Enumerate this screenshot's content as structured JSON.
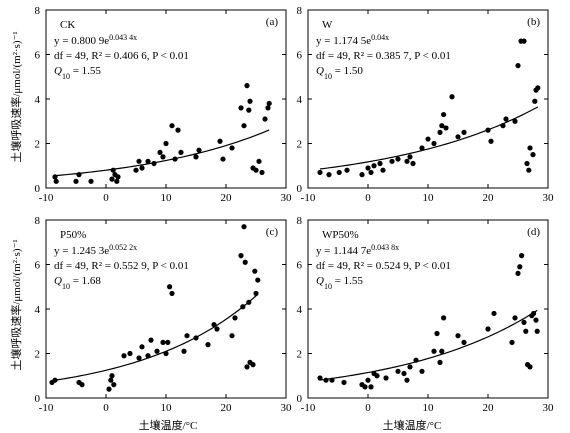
{
  "chart_data": {
    "type": "scatter",
    "xlabel": "土壤温度/°C",
    "ylabel": "土壤呼吸速率/μmol/(m²·s)⁻¹",
    "xlim": [
      -10,
      30
    ],
    "ylim": [
      0,
      8
    ],
    "xticks": [
      -10,
      0,
      10,
      20,
      30
    ],
    "yticks": [
      0,
      2,
      4,
      6,
      8
    ],
    "panels": [
      {
        "name": "CK",
        "tag": "(a)",
        "eq_lines": [
          "y = 0.800 9e^0.043 4x",
          "df = 49, R² = 0.406 6, P < 0.01",
          "Q10 = 1.55"
        ],
        "fit": {
          "a": 0.8009,
          "b": 0.0434
        },
        "x": [
          -8.5,
          -8.3,
          -5,
          -4.5,
          -2.5,
          1,
          1.2,
          1.5,
          1.8,
          2,
          5,
          5.5,
          6,
          7,
          8,
          9,
          9.5,
          10,
          11,
          11.5,
          12,
          12.5,
          15,
          15.5,
          19,
          19.5,
          21,
          22.5,
          23,
          23.5,
          24,
          24.5,
          25,
          25.5,
          26,
          26.5,
          27,
          27.2,
          23.8
        ],
        "y": [
          0.5,
          0.3,
          0.3,
          0.6,
          0.3,
          0.4,
          0.8,
          0.6,
          0.3,
          0.5,
          0.8,
          1.2,
          0.9,
          1.2,
          1.1,
          1.6,
          1.4,
          2.0,
          2.8,
          1.3,
          2.6,
          1.6,
          1.4,
          1.7,
          2.1,
          1.3,
          1.8,
          3.6,
          2.8,
          4.6,
          3.9,
          0.9,
          0.8,
          1.2,
          0.7,
          3.1,
          3.6,
          3.8,
          3.5
        ]
      },
      {
        "name": "W",
        "tag": "(b)",
        "eq_lines": [
          "y = 1.174 5e^0.04x",
          "df = 49, R² = 0.385 7, P < 0.01",
          "Q10 = 1.50"
        ],
        "fit": {
          "a": 1.1745,
          "b": 0.04
        },
        "x": [
          -8,
          -6.5,
          -4.8,
          -3.5,
          -1,
          0,
          0.5,
          1,
          2,
          2.5,
          4,
          5,
          6.5,
          7,
          7.5,
          9,
          10,
          11,
          12,
          12.3,
          12.6,
          13,
          14,
          15,
          16,
          20,
          20.5,
          22.5,
          23,
          24.5,
          25,
          25.5,
          26,
          26.5,
          26.8,
          27,
          27.5,
          27.8,
          28,
          28.3
        ],
        "y": [
          0.7,
          0.6,
          0.7,
          0.8,
          0.6,
          0.9,
          0.7,
          1.0,
          1.1,
          0.8,
          1.2,
          1.3,
          1.2,
          1.4,
          1.1,
          1.8,
          2.2,
          2.0,
          2.5,
          2.8,
          3.3,
          2.7,
          4.1,
          2.3,
          2.5,
          2.6,
          2.1,
          2.8,
          3.1,
          3.0,
          5.5,
          6.6,
          6.6,
          1.1,
          0.8,
          1.8,
          1.5,
          3.9,
          4.4,
          4.5
        ]
      },
      {
        "name": "P50%",
        "tag": "(c)",
        "eq_lines": [
          "y = 1.245 3e^0.052 2x",
          "df = 49, R² = 0.552 9, P < 0.01",
          "Q10 = 1.68"
        ],
        "fit": {
          "a": 1.2453,
          "b": 0.0522
        },
        "x": [
          -9,
          -8.5,
          -4.5,
          -4,
          0.5,
          0.8,
          1,
          1.3,
          3,
          4,
          5.5,
          6,
          7,
          7.5,
          8.5,
          9.5,
          10,
          10.3,
          10.6,
          11,
          13,
          13.5,
          15,
          17,
          18,
          18.5,
          21,
          21.5,
          22.5,
          22.8,
          23,
          23.2,
          23.5,
          23.8,
          24,
          24.5,
          24.8,
          25,
          25.3
        ],
        "y": [
          0.7,
          0.8,
          0.7,
          0.6,
          0.4,
          0.8,
          1.0,
          0.6,
          1.9,
          2.0,
          1.8,
          2.3,
          1.9,
          2.6,
          2.1,
          2.5,
          2.0,
          2.5,
          5.0,
          4.7,
          2.1,
          2.8,
          2.7,
          2.4,
          3.3,
          3.1,
          2.8,
          3.6,
          6.4,
          4.1,
          7.7,
          6.1,
          1.4,
          4.3,
          1.6,
          1.5,
          5.7,
          4.7,
          5.3
        ]
      },
      {
        "name": "WP50%",
        "tag": "(d)",
        "eq_lines": [
          "y = 1.144 7e^0.043 8x",
          "df = 49, R² = 0.524 9, P < 0.01",
          "Q10 = 1.55"
        ],
        "fit": {
          "a": 1.1447,
          "b": 0.0438
        },
        "x": [
          -8,
          -7,
          -6,
          -4,
          -1,
          -0.5,
          0,
          0.5,
          1,
          1.5,
          3,
          5,
          6,
          6.5,
          7,
          8,
          9,
          11,
          11.5,
          12,
          12.3,
          12.6,
          15,
          16,
          20,
          21,
          24,
          24.5,
          25,
          25.3,
          25.6,
          26,
          26.3,
          26.6,
          27,
          27.3,
          27.6,
          28,
          28.2
        ],
        "y": [
          0.9,
          0.8,
          0.8,
          0.7,
          0.6,
          0.5,
          0.8,
          0.5,
          1.1,
          1.0,
          0.9,
          1.2,
          1.1,
          0.8,
          1.4,
          1.7,
          1.2,
          2.1,
          2.9,
          1.6,
          2.1,
          3.6,
          2.8,
          2.5,
          3.1,
          3.8,
          2.5,
          3.6,
          5.6,
          5.9,
          6.4,
          3.4,
          3.0,
          1.5,
          1.4,
          3.7,
          3.8,
          3.5,
          3.0
        ]
      }
    ]
  }
}
